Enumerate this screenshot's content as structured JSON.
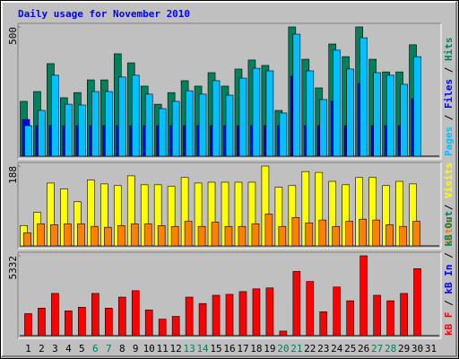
{
  "chart_data": [
    {
      "type": "bar",
      "title": "Daily usage for November 2010",
      "title_color": "#0000ff",
      "categories": [
        "1",
        "2",
        "3",
        "4",
        "5",
        "6",
        "7",
        "8",
        "9",
        "10",
        "11",
        "12",
        "13",
        "14",
        "15",
        "16",
        "17",
        "18",
        "19",
        "20",
        "21",
        "22",
        "23",
        "24",
        "25",
        "26",
        "27",
        "28",
        "29",
        "30",
        "31"
      ],
      "category_colors": [
        "#000000",
        "#000000",
        "#000000",
        "#000000",
        "#000000",
        "#00805c",
        "#00805c",
        "#000000",
        "#000000",
        "#000000",
        "#000000",
        "#000000",
        "#00805c",
        "#00805c",
        "#000000",
        "#000000",
        "#000000",
        "#000000",
        "#000000",
        "#00805c",
        "#00805c",
        "#000000",
        "#000000",
        "#000000",
        "#000000",
        "#000000",
        "#00805c",
        "#00805c",
        "#000000",
        "#000000",
        "#000000"
      ],
      "legend_separator": " / ",
      "ylim": [
        0,
        500
      ],
      "yticks": [
        500
      ],
      "series": [
        {
          "name": "Pages",
          "color": "#00c0ff",
          "values": [
            118,
            177,
            313,
            201,
            198,
            250,
            250,
            306,
            313,
            240,
            184,
            212,
            253,
            240,
            292,
            236,
            302,
            340,
            330,
            167,
            472,
            330,
            219,
            410,
            337,
            458,
            323,
            313,
            278,
            385,
            null
          ]
        },
        {
          "name": "Files",
          "color": "#0000ff",
          "values": [
            142,
            118,
            118,
            118,
            118,
            118,
            118,
            118,
            118,
            118,
            118,
            118,
            118,
            118,
            118,
            118,
            118,
            118,
            118,
            118,
            309,
            118,
            118,
            212,
            118,
            281,
            118,
            118,
            118,
            222,
            null
          ]
        },
        {
          "name": "Hits",
          "color": "#00805c",
          "values": [
            212,
            250,
            358,
            226,
            246,
            295,
            295,
            396,
            361,
            271,
            201,
            246,
            292,
            271,
            323,
            271,
            337,
            372,
            351,
            177,
            500,
            375,
            264,
            434,
            385,
            500,
            375,
            326,
            326,
            431,
            null
          ]
        }
      ]
    },
    {
      "type": "bar",
      "ylim": [
        0,
        188
      ],
      "yticks": [
        188
      ],
      "series": [
        {
          "name": "Sites",
          "color": "#ff8000",
          "values": [
            31,
            52,
            50,
            52,
            52,
            46,
            44,
            48,
            52,
            52,
            48,
            46,
            58,
            46,
            56,
            46,
            46,
            52,
            75,
            46,
            67,
            54,
            61,
            46,
            58,
            63,
            61,
            50,
            46,
            58,
            null
          ]
        },
        {
          "name": "Visits",
          "color": "#ffff00",
          "values": [
            48,
            79,
            148,
            134,
            104,
            155,
            146,
            142,
            165,
            144,
            144,
            140,
            161,
            148,
            150,
            150,
            150,
            150,
            188,
            138,
            142,
            175,
            173,
            152,
            144,
            161,
            161,
            142,
            152,
            146,
            null
          ]
        }
      ]
    },
    {
      "type": "bar",
      "ylim": [
        0,
        5332
      ],
      "yticks": [
        5332
      ],
      "series": [
        {
          "name": "kB F",
          "color": "#ff0000",
          "values": [
            1471,
            1839,
            2820,
            1655,
            1900,
            2820,
            1839,
            2574,
            3003,
            1716,
            1103,
            1287,
            2574,
            2145,
            2697,
            2758,
            2942,
            3126,
            3187,
            306,
            4290,
            3616,
            1593,
            3248,
            2329,
            5332,
            2697,
            2329,
            2820,
            4474,
            null
          ]
        },
        {
          "name": "kB In",
          "color": "#0000ff",
          "values": [
            0,
            0,
            0,
            0,
            0,
            0,
            0,
            0,
            0,
            0,
            0,
            0,
            0,
            0,
            0,
            0,
            0,
            0,
            0,
            0,
            0,
            0,
            0,
            0,
            0,
            0,
            0,
            0,
            0,
            0,
            null
          ]
        },
        {
          "name": "kB Out",
          "color": "#00805c",
          "values": [
            0,
            0,
            0,
            0,
            0,
            0,
            0,
            0,
            0,
            0,
            0,
            0,
            0,
            0,
            0,
            0,
            0,
            0,
            0,
            0,
            0,
            0,
            0,
            0,
            0,
            0,
            0,
            0,
            0,
            0,
            null
          ]
        }
      ]
    }
  ]
}
